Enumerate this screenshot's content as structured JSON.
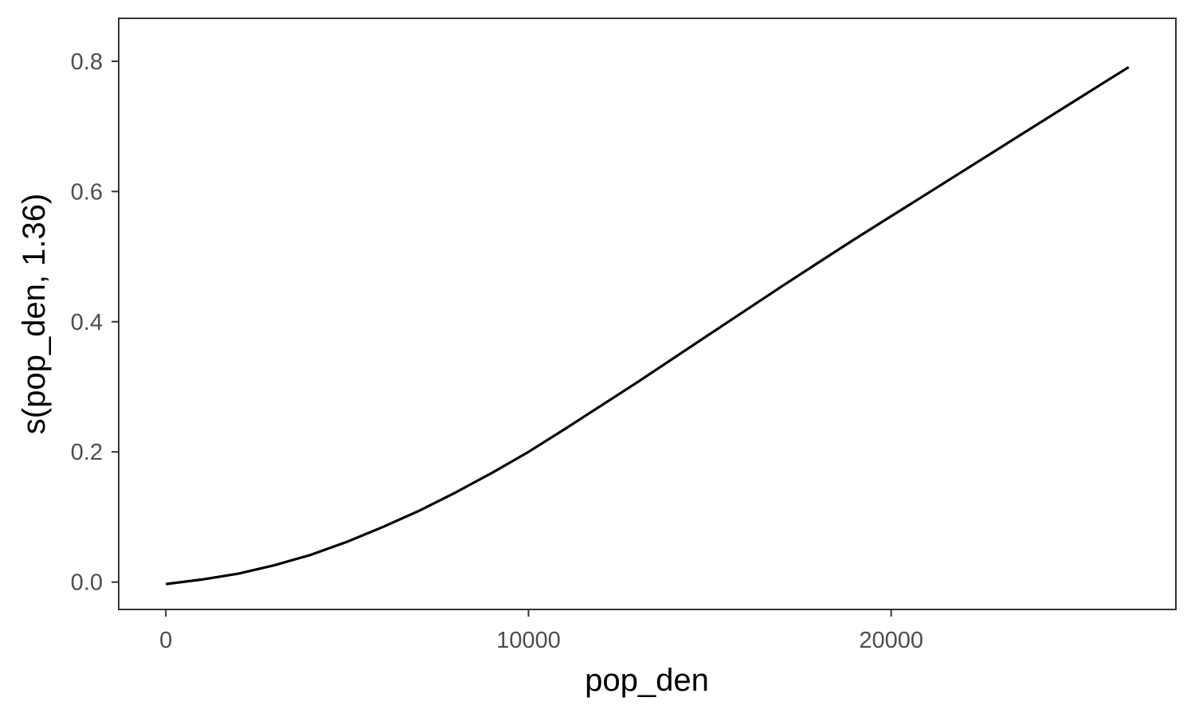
{
  "chart_data": {
    "type": "line",
    "title": "",
    "xlabel": "pop_den",
    "ylabel": "s(pop_den, 1.36)",
    "xlim": [
      -1300,
      27850
    ],
    "ylim": [
      -0.042,
      0.866
    ],
    "xticks": [
      0,
      10000,
      20000
    ],
    "xtick_labels": [
      "0",
      "10000",
      "20000"
    ],
    "yticks": [
      0.0,
      0.2,
      0.4,
      0.6,
      0.8
    ],
    "ytick_labels": [
      "0.0",
      "0.2",
      "0.4",
      "0.6",
      "0.8"
    ],
    "grid": false,
    "series": [
      {
        "color": "#000000",
        "x": [
          0,
          1000,
          2000,
          3000,
          4000,
          5000,
          6000,
          7000,
          8000,
          9000,
          10000,
          11000,
          12000,
          13000,
          14000,
          15000,
          16000,
          17000,
          18000,
          19000,
          20000,
          21000,
          22000,
          23000,
          24000,
          25000,
          26000,
          26550
        ],
        "y": [
          -0.003,
          0.004,
          0.013,
          0.026,
          0.042,
          0.062,
          0.085,
          0.11,
          0.138,
          0.168,
          0.2,
          0.235,
          0.271,
          0.307,
          0.344,
          0.381,
          0.418,
          0.455,
          0.491,
          0.527,
          0.562,
          0.597,
          0.632,
          0.667,
          0.702,
          0.737,
          0.772,
          0.791
        ]
      }
    ]
  }
}
